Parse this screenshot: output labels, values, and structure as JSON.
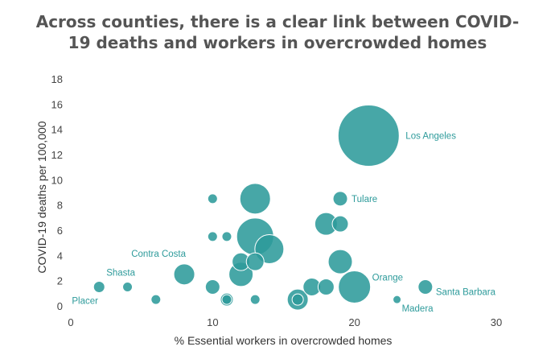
{
  "chart_data": {
    "type": "scatter",
    "title_lines": [
      "Across counties, there is a clear link between COVID-",
      "19 deaths and workers in overcrowded homes"
    ],
    "xlabel": "% Essential workers in overcrowded homes",
    "ylabel": "COVID-19 deaths per 100,000",
    "xlim": [
      0,
      30
    ],
    "ylim": [
      0,
      18
    ],
    "xticks": [
      0,
      10,
      20,
      30
    ],
    "yticks": [
      0,
      2,
      4,
      6,
      8,
      10,
      12,
      14,
      16,
      18
    ],
    "grid": false,
    "bubble_color": "#2e9b9b",
    "points": [
      {
        "x": 21,
        "y": 13.5,
        "r": 38,
        "label": "Los Angeles"
      },
      {
        "x": 13,
        "y": 8.5,
        "r": 19,
        "label": ""
      },
      {
        "x": 10,
        "y": 8.5,
        "r": 6,
        "label": ""
      },
      {
        "x": 19,
        "y": 8.5,
        "r": 9,
        "label": "Tulare"
      },
      {
        "x": 13,
        "y": 5.5,
        "r": 23,
        "label": ""
      },
      {
        "x": 10,
        "y": 5.5,
        "r": 6,
        "label": ""
      },
      {
        "x": 11,
        "y": 5.5,
        "r": 6,
        "label": ""
      },
      {
        "x": 18,
        "y": 6.5,
        "r": 14,
        "label": ""
      },
      {
        "x": 19,
        "y": 6.5,
        "r": 10,
        "label": ""
      },
      {
        "x": 14,
        "y": 4.5,
        "r": 18,
        "label": ""
      },
      {
        "x": 12,
        "y": 3.5,
        "r": 11,
        "label": ""
      },
      {
        "x": 13,
        "y": 3.5,
        "r": 11,
        "label": ""
      },
      {
        "x": 12,
        "y": 2.5,
        "r": 15,
        "label": ""
      },
      {
        "x": 8,
        "y": 2.5,
        "r": 13,
        "label": "Contra Costa"
      },
      {
        "x": 19,
        "y": 3.5,
        "r": 15,
        "label": ""
      },
      {
        "x": 20,
        "y": 1.5,
        "r": 20,
        "label": "Orange"
      },
      {
        "x": 17,
        "y": 1.5,
        "r": 11,
        "label": ""
      },
      {
        "x": 18,
        "y": 1.5,
        "r": 10,
        "label": ""
      },
      {
        "x": 10,
        "y": 1.5,
        "r": 9,
        "label": ""
      },
      {
        "x": 25,
        "y": 1.5,
        "r": 9,
        "label": "Santa Barbara"
      },
      {
        "x": 2,
        "y": 1.5,
        "r": 7,
        "label": "Placer"
      },
      {
        "x": 4,
        "y": 1.5,
        "r": 6,
        "label": "Shasta"
      },
      {
        "x": 6,
        "y": 0.5,
        "r": 6,
        "label": ""
      },
      {
        "x": 11,
        "y": 0.5,
        "r": 8,
        "label": ""
      },
      {
        "x": 11,
        "y": 0.5,
        "r": 6,
        "label": ""
      },
      {
        "x": 13,
        "y": 0.5,
        "r": 6,
        "label": ""
      },
      {
        "x": 16,
        "y": 0.5,
        "r": 13,
        "label": ""
      },
      {
        "x": 16,
        "y": 0.5,
        "r": 7,
        "label": ""
      },
      {
        "x": 23,
        "y": 0.5,
        "r": 5,
        "label": "Madera"
      }
    ]
  }
}
